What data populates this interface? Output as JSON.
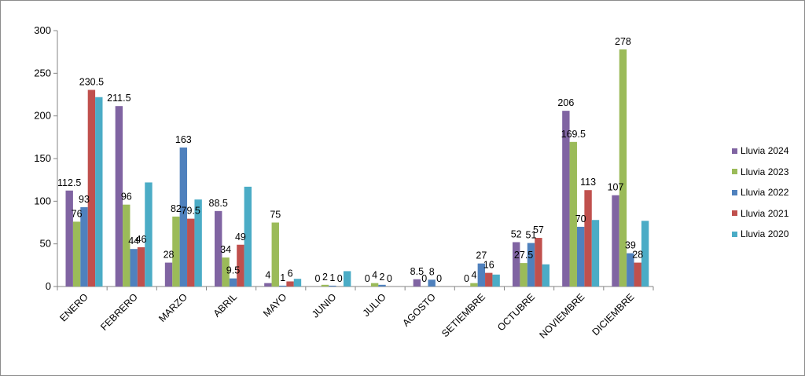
{
  "chart_data": {
    "type": "bar",
    "categories": [
      "ENERO",
      "FEBRERO",
      "MARZO",
      "ABRIL",
      "MAYO",
      "JUNIO",
      "JULIO",
      "AGOSTO",
      "SETIEMBRE",
      "OCTUBRE",
      "NOVIEMBRE",
      "DICIEMBRE"
    ],
    "series": [
      {
        "name": "Lluvia 2024",
        "color": "#8064A2",
        "values": [
          112.5,
          211.5,
          28,
          88.5,
          4,
          0,
          0,
          8.5,
          0,
          52,
          206,
          107
        ],
        "labels": [
          "112.5",
          "211.5",
          "28",
          "88.5",
          "4",
          "0",
          "0",
          "8.5",
          "0",
          "52",
          "206",
          "107"
        ]
      },
      {
        "name": "Lluvia 2023",
        "color": "#9BBB59",
        "values": [
          76,
          96,
          82,
          34,
          75,
          2,
          4,
          0,
          4,
          27.5,
          169.5,
          278
        ],
        "labels": [
          "76",
          "96",
          "82",
          "34",
          "75",
          "2",
          "4",
          "0",
          "4",
          "27.5",
          "169.5",
          "278"
        ]
      },
      {
        "name": "Lluvia 2022",
        "color": "#4F81BD",
        "values": [
          93,
          44,
          163,
          9.5,
          1,
          1,
          2,
          8,
          27,
          51,
          70,
          39
        ],
        "labels": [
          "93",
          "44",
          "163",
          "9.5",
          "1",
          "1",
          "2",
          "8",
          "27",
          "51",
          "70",
          "39"
        ]
      },
      {
        "name": "Lluvia 2021",
        "color": "#C0504D",
        "values": [
          230.5,
          46,
          79.5,
          49,
          6,
          0,
          0,
          0,
          16,
          57,
          113,
          28
        ],
        "labels": [
          "230.5",
          "46",
          "79.5",
          "49",
          "6",
          "0",
          "0",
          "0",
          "16",
          "57",
          "113",
          "28"
        ]
      },
      {
        "name": "Lluvia 2020",
        "color": "#4BACC6",
        "values": [
          222,
          122,
          102,
          117,
          9,
          18,
          0,
          0,
          14,
          26,
          78,
          77
        ],
        "labels": [
          "",
          "",
          "",
          "",
          "",
          "",
          "",
          "",
          "",
          "",
          "",
          ""
        ]
      }
    ],
    "ylim": [
      0,
      300
    ],
    "yticks": [
      0,
      50,
      100,
      150,
      200,
      250,
      300
    ],
    "grid": false,
    "legend": "right",
    "title": "",
    "xlabel": "",
    "ylabel": ""
  }
}
